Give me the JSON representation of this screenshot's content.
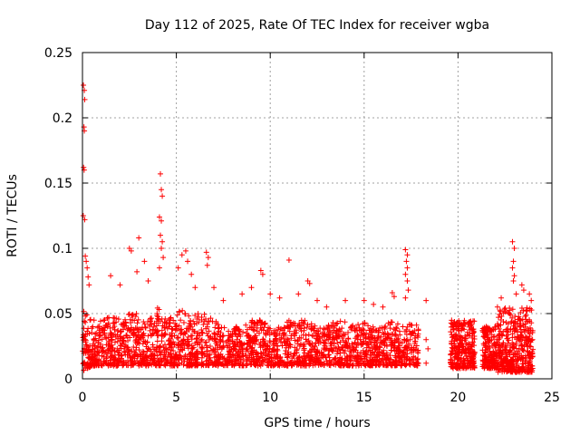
{
  "chart_data": {
    "type": "scatter",
    "title": "Day 112 of 2025, Rate Of TEC Index for receiver wgba",
    "xlabel": "GPS time / hours",
    "ylabel": "ROTI / TECUs",
    "xlim": [
      0,
      25
    ],
    "ylim": [
      0,
      0.25
    ],
    "xticks": [
      0,
      5,
      10,
      15,
      20,
      25
    ],
    "xtick_labels": [
      "0",
      "5",
      "10",
      "15",
      "20",
      "25"
    ],
    "yticks": [
      0,
      0.05,
      0.1,
      0.15,
      0.2,
      0.25
    ],
    "ytick_labels": [
      "0",
      "0.05",
      "0.1",
      "0.15",
      "0.2",
      "0.25"
    ],
    "grid": true,
    "marker": "+",
    "color": "#ff0000",
    "series": [
      {
        "name": "ROTI",
        "envelope": {
          "x": [
            0.0,
            0.5,
            1.0,
            1.5,
            2.0,
            2.5,
            3.0,
            3.5,
            4.0,
            4.5,
            5.0,
            5.5,
            6.0,
            6.5,
            7.0,
            7.5,
            8.0,
            8.5,
            9.0,
            9.5,
            10.0,
            10.5,
            11.0,
            11.5,
            12.0,
            12.5,
            13.0,
            13.5,
            14.0,
            14.5,
            15.0,
            15.5,
            16.0,
            16.5,
            17.0,
            17.5,
            17.9
          ],
          "typical_max": [
            0.055,
            0.045,
            0.045,
            0.05,
            0.045,
            0.05,
            0.05,
            0.045,
            0.055,
            0.045,
            0.05,
            0.055,
            0.05,
            0.05,
            0.045,
            0.04,
            0.04,
            0.04,
            0.045,
            0.045,
            0.04,
            0.04,
            0.045,
            0.045,
            0.045,
            0.04,
            0.04,
            0.045,
            0.045,
            0.04,
            0.045,
            0.04,
            0.04,
            0.045,
            0.04,
            0.045,
            0.04
          ],
          "typical_min": [
            0.005,
            0.01,
            0.01,
            0.01,
            0.01,
            0.01,
            0.01,
            0.01,
            0.01,
            0.01,
            0.01,
            0.01,
            0.01,
            0.01,
            0.01,
            0.01,
            0.01,
            0.01,
            0.01,
            0.01,
            0.01,
            0.01,
            0.01,
            0.01,
            0.01,
            0.01,
            0.01,
            0.01,
            0.01,
            0.01,
            0.01,
            0.01,
            0.01,
            0.01,
            0.01,
            0.01,
            0.01
          ]
        },
        "late_segments": [
          {
            "x_range": [
              19.6,
              20.9
            ],
            "y_range": [
              0.008,
              0.045
            ]
          },
          {
            "x_range": [
              21.3,
              22.1
            ],
            "y_range": [
              0.008,
              0.04
            ]
          },
          {
            "x_range": [
              22.1,
              24.0
            ],
            "y_range": [
              0.005,
              0.055
            ]
          }
        ],
        "spikes": [
          {
            "x": 0.05,
            "y": 0.225
          },
          {
            "x": 0.1,
            "y": 0.221
          },
          {
            "x": 0.12,
            "y": 0.214
          },
          {
            "x": 0.08,
            "y": 0.193
          },
          {
            "x": 0.1,
            "y": 0.19
          },
          {
            "x": 0.06,
            "y": 0.162
          },
          {
            "x": 0.09,
            "y": 0.16
          },
          {
            "x": 0.04,
            "y": 0.125
          },
          {
            "x": 0.12,
            "y": 0.122
          },
          {
            "x": 0.15,
            "y": 0.094
          },
          {
            "x": 0.2,
            "y": 0.09
          },
          {
            "x": 0.25,
            "y": 0.085
          },
          {
            "x": 0.3,
            "y": 0.078
          },
          {
            "x": 0.35,
            "y": 0.072
          },
          {
            "x": 1.5,
            "y": 0.079
          },
          {
            "x": 2.0,
            "y": 0.072
          },
          {
            "x": 2.5,
            "y": 0.1
          },
          {
            "x": 2.6,
            "y": 0.098
          },
          {
            "x": 2.9,
            "y": 0.082
          },
          {
            "x": 3.0,
            "y": 0.108
          },
          {
            "x": 3.3,
            "y": 0.09
          },
          {
            "x": 3.5,
            "y": 0.075
          },
          {
            "x": 4.15,
            "y": 0.157
          },
          {
            "x": 4.2,
            "y": 0.145
          },
          {
            "x": 4.25,
            "y": 0.14
          },
          {
            "x": 4.1,
            "y": 0.124
          },
          {
            "x": 4.2,
            "y": 0.121
          },
          {
            "x": 4.15,
            "y": 0.11
          },
          {
            "x": 4.25,
            "y": 0.105
          },
          {
            "x": 4.2,
            "y": 0.1
          },
          {
            "x": 4.3,
            "y": 0.093
          },
          {
            "x": 4.1,
            "y": 0.085
          },
          {
            "x": 5.1,
            "y": 0.085
          },
          {
            "x": 5.3,
            "y": 0.095
          },
          {
            "x": 5.5,
            "y": 0.098
          },
          {
            "x": 5.6,
            "y": 0.09
          },
          {
            "x": 5.8,
            "y": 0.08
          },
          {
            "x": 6.0,
            "y": 0.07
          },
          {
            "x": 6.6,
            "y": 0.097
          },
          {
            "x": 6.7,
            "y": 0.093
          },
          {
            "x": 6.65,
            "y": 0.087
          },
          {
            "x": 7.0,
            "y": 0.07
          },
          {
            "x": 7.5,
            "y": 0.06
          },
          {
            "x": 8.5,
            "y": 0.065
          },
          {
            "x": 9.0,
            "y": 0.07
          },
          {
            "x": 9.5,
            "y": 0.083
          },
          {
            "x": 9.6,
            "y": 0.08
          },
          {
            "x": 10.0,
            "y": 0.065
          },
          {
            "x": 10.5,
            "y": 0.062
          },
          {
            "x": 11.0,
            "y": 0.091
          },
          {
            "x": 11.5,
            "y": 0.065
          },
          {
            "x": 12.0,
            "y": 0.075
          },
          {
            "x": 12.1,
            "y": 0.073
          },
          {
            "x": 12.5,
            "y": 0.06
          },
          {
            "x": 13.0,
            "y": 0.055
          },
          {
            "x": 14.0,
            "y": 0.06
          },
          {
            "x": 15.0,
            "y": 0.06
          },
          {
            "x": 15.5,
            "y": 0.057
          },
          {
            "x": 16.0,
            "y": 0.055
          },
          {
            "x": 16.5,
            "y": 0.066
          },
          {
            "x": 16.6,
            "y": 0.063
          },
          {
            "x": 17.2,
            "y": 0.099
          },
          {
            "x": 17.3,
            "y": 0.095
          },
          {
            "x": 17.25,
            "y": 0.09
          },
          {
            "x": 17.3,
            "y": 0.085
          },
          {
            "x": 17.2,
            "y": 0.08
          },
          {
            "x": 17.3,
            "y": 0.075
          },
          {
            "x": 17.35,
            "y": 0.068
          },
          {
            "x": 17.2,
            "y": 0.062
          },
          {
            "x": 18.3,
            "y": 0.06
          },
          {
            "x": 18.3,
            "y": 0.03
          },
          {
            "x": 18.4,
            "y": 0.023
          },
          {
            "x": 18.3,
            "y": 0.012
          },
          {
            "x": 20.3,
            "y": 0.043
          },
          {
            "x": 21.5,
            "y": 0.04
          },
          {
            "x": 22.1,
            "y": 0.055
          },
          {
            "x": 22.3,
            "y": 0.062
          },
          {
            "x": 22.9,
            "y": 0.105
          },
          {
            "x": 23.0,
            "y": 0.1
          },
          {
            "x": 22.95,
            "y": 0.09
          },
          {
            "x": 22.9,
            "y": 0.085
          },
          {
            "x": 23.0,
            "y": 0.079
          },
          {
            "x": 22.95,
            "y": 0.075
          },
          {
            "x": 23.1,
            "y": 0.065
          },
          {
            "x": 23.4,
            "y": 0.072
          },
          {
            "x": 23.5,
            "y": 0.068
          },
          {
            "x": 23.8,
            "y": 0.065
          },
          {
            "x": 23.9,
            "y": 0.06
          }
        ]
      }
    ]
  }
}
